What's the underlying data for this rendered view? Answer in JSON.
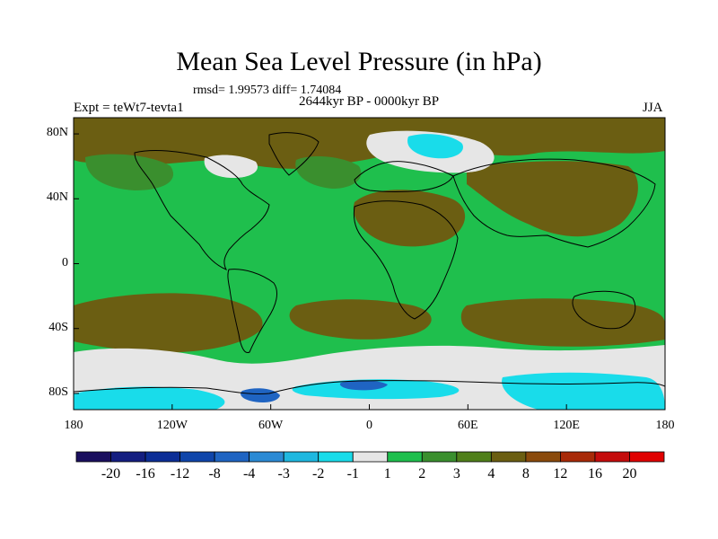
{
  "title": "Mean Sea Level Pressure (in hPa)",
  "stats": "rmsd= 1.99573 diff= 1.74084",
  "experiment": "Expt = teWt7-tevta1",
  "period": "2644kyr BP - 0000kyr BP",
  "season": "JJA",
  "y_axis": {
    "labels": [
      "80N",
      "40N",
      "0",
      "40S",
      "80S"
    ],
    "values": [
      80,
      40,
      0,
      -40,
      -80
    ]
  },
  "x_axis": {
    "labels": [
      "180",
      "120W",
      "60W",
      "0",
      "60E",
      "120E",
      "180"
    ],
    "values": [
      -180,
      -120,
      -60,
      0,
      60,
      120,
      180
    ]
  },
  "colorbar": {
    "labels": [
      "-20",
      "-16",
      "-12",
      "-8",
      "-4",
      "-3",
      "-2",
      "-1",
      "1",
      "2",
      "3",
      "4",
      "8",
      "12",
      "16",
      "20"
    ],
    "colors": [
      "#1a0f5e",
      "#141e80",
      "#0c2e96",
      "#0f45aa",
      "#1f64c2",
      "#2b8ad4",
      "#1fb8e0",
      "#19dcea",
      "#e6e6e6",
      "#1fbf4d",
      "#3a8f2e",
      "#4f7f1a",
      "#6b5e12",
      "#8a4a0c",
      "#a82a08",
      "#c40c0c",
      "#e00000"
    ]
  },
  "regions": {
    "base_color": "#1fbf4d",
    "features": [
      {
        "name": "arctic-band",
        "color": "#6b5e12"
      },
      {
        "name": "north-pacific-high",
        "color": "#3a8f2e"
      },
      {
        "name": "north-atlantic-high",
        "color": "#3a8f2e"
      },
      {
        "name": "greenland-low",
        "color": "#e6e6e6"
      },
      {
        "name": "barents-low",
        "color": "#e6e6e6"
      },
      {
        "name": "barents-core",
        "color": "#19dcea"
      },
      {
        "name": "sahara-high",
        "color": "#6b5e12"
      },
      {
        "name": "asia-high",
        "color": "#6b5e12"
      },
      {
        "name": "southern-pacific-high",
        "color": "#6b5e12"
      },
      {
        "name": "southern-atlantic-high",
        "color": "#6b5e12"
      },
      {
        "name": "southern-indian-high",
        "color": "#6b5e12"
      },
      {
        "name": "antarctic-band",
        "color": "#e6e6e6"
      },
      {
        "name": "antarctic-cyan",
        "color": "#19dcea"
      },
      {
        "name": "weddell-core",
        "color": "#1f64c2"
      }
    ]
  }
}
